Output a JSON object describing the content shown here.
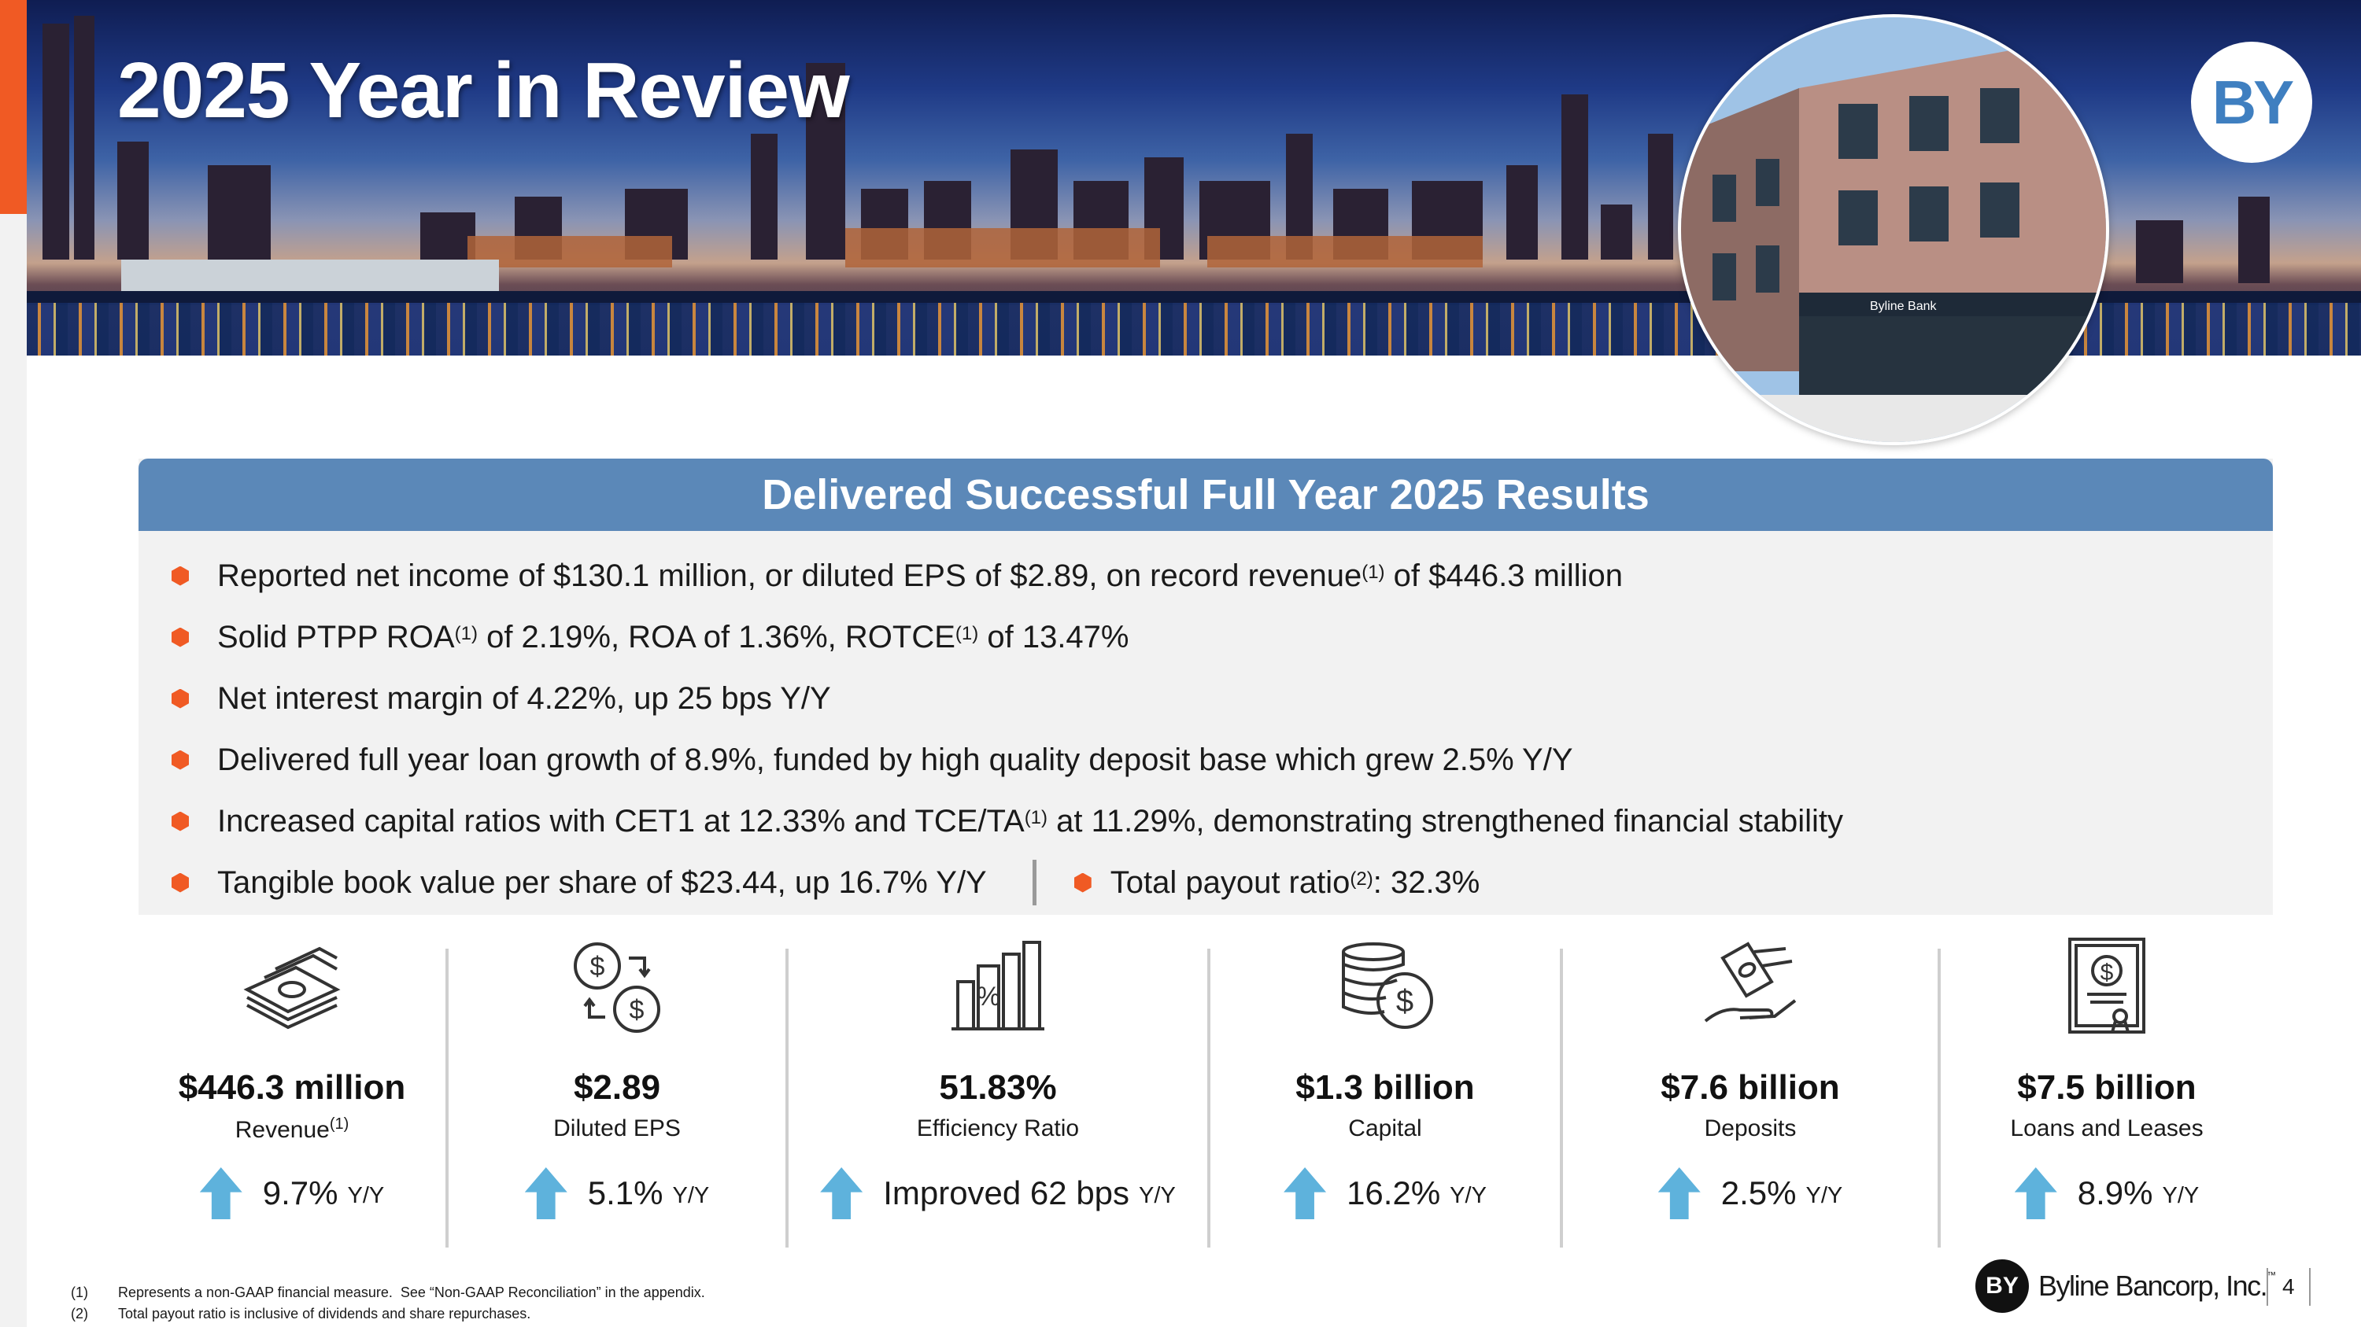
{
  "header": {
    "title": "2025 Year in Review",
    "logo_text": "BY",
    "photo_sign": "Byline Bank"
  },
  "results": {
    "heading": "Delivered Successful Full Year 2025 Results",
    "bullets": [
      {
        "before": "Reported net income of $130.1 million, or diluted EPS of $2.89, on record revenue",
        "sup": "(1)",
        "after": " of $446.3 million"
      },
      {
        "a": "Solid PTPP ROA",
        "sup1": "(1)",
        "b": " of 2.19%, ROA of 1.36%, ROTCE",
        "sup2": "(1)",
        "c": " of 13.47%"
      },
      {
        "text": "Net interest margin of 4.22%, up 25 bps Y/Y"
      },
      {
        "text": "Delivered full year loan growth of 8.9%, funded by high quality deposit base which grew 2.5% Y/Y"
      },
      {
        "before": "Increased capital ratios with CET1 at 12.33% and TCE/TA",
        "sup": "(1)",
        "after": " at 11.29%, demonstrating strengthened financial stability"
      },
      {
        "left": "Tangible book value per share of $23.44, up 16.7% Y/Y",
        "right_before": "Total payout ratio",
        "right_sup": "(2)",
        "right_after": ": 32.3%"
      }
    ]
  },
  "stats": [
    {
      "icon": "cash-stack-icon",
      "value": "$446.3 million",
      "label": "Revenue",
      "label_sup": "(1)",
      "change": "9.7%",
      "unit": "Y/Y"
    },
    {
      "icon": "dollar-exchange-icon",
      "value": "$2.89",
      "label": "Diluted EPS",
      "change": "5.1%",
      "unit": "Y/Y"
    },
    {
      "icon": "percent-chart-icon",
      "value": "51.83%",
      "label": "Efficiency Ratio",
      "change": "Improved 62 bps",
      "unit": "Y/Y"
    },
    {
      "icon": "coin-stack-icon",
      "value": "$1.3 billion",
      "label": "Capital",
      "change": "16.2%",
      "unit": "Y/Y"
    },
    {
      "icon": "hand-cash-icon",
      "value": "$7.6 billion",
      "label": "Deposits",
      "change": "2.5%",
      "unit": "Y/Y"
    },
    {
      "icon": "certificate-icon",
      "value": "$7.5 billion",
      "label": "Loans and Leases",
      "change": "8.9%",
      "unit": "Y/Y"
    }
  ],
  "footnotes": [
    {
      "num": "(1)",
      "text": "Represents a non-GAAP financial measure.  See “Non-GAAP Reconciliation” in the appendix."
    },
    {
      "num": "(2)",
      "text": "Total payout ratio is inclusive of dividends and share repurchases."
    }
  ],
  "footer": {
    "logo_mark": "BY",
    "company": "Byline Bancorp, Inc.",
    "tm": "™",
    "page": "4"
  },
  "colors": {
    "accent_orange": "#f05a24",
    "header_blue": "#5b88b8",
    "arrow_blue": "#5eb2dc",
    "panel_gray": "#f2f2f2"
  }
}
